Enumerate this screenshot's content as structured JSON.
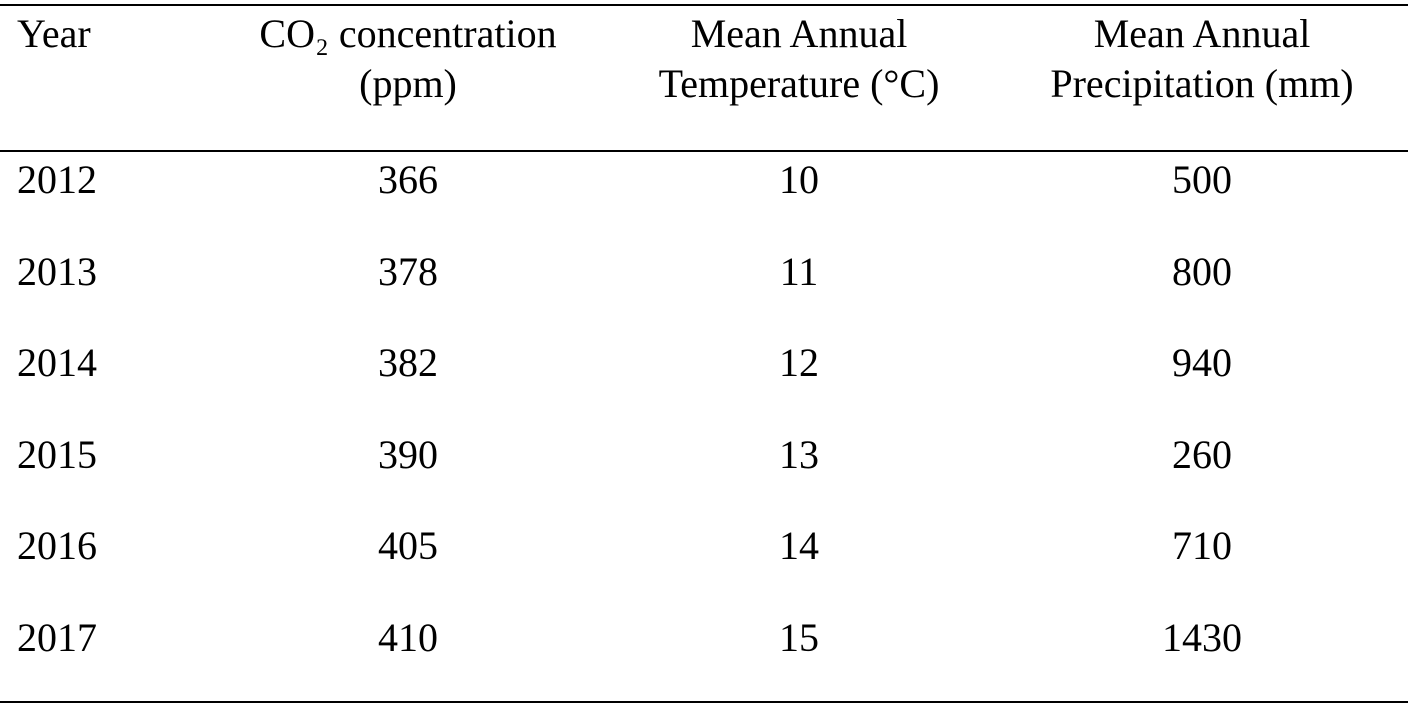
{
  "table": {
    "header": [
      [
        "Year"
      ],
      [
        "CO₂ concentration",
        "(ppm)"
      ],
      [
        "Mean Annual",
        "Temperature (°C)"
      ],
      [
        "Mean Annual",
        "Precipitation (mm)"
      ]
    ],
    "rows": [
      [
        2012,
        366,
        10,
        500
      ],
      [
        2013,
        378,
        11,
        800
      ],
      [
        2014,
        382,
        12,
        940
      ],
      [
        2015,
        390,
        13,
        260
      ],
      [
        2016,
        405,
        14,
        710
      ],
      [
        2017,
        410,
        15,
        1430
      ]
    ]
  }
}
